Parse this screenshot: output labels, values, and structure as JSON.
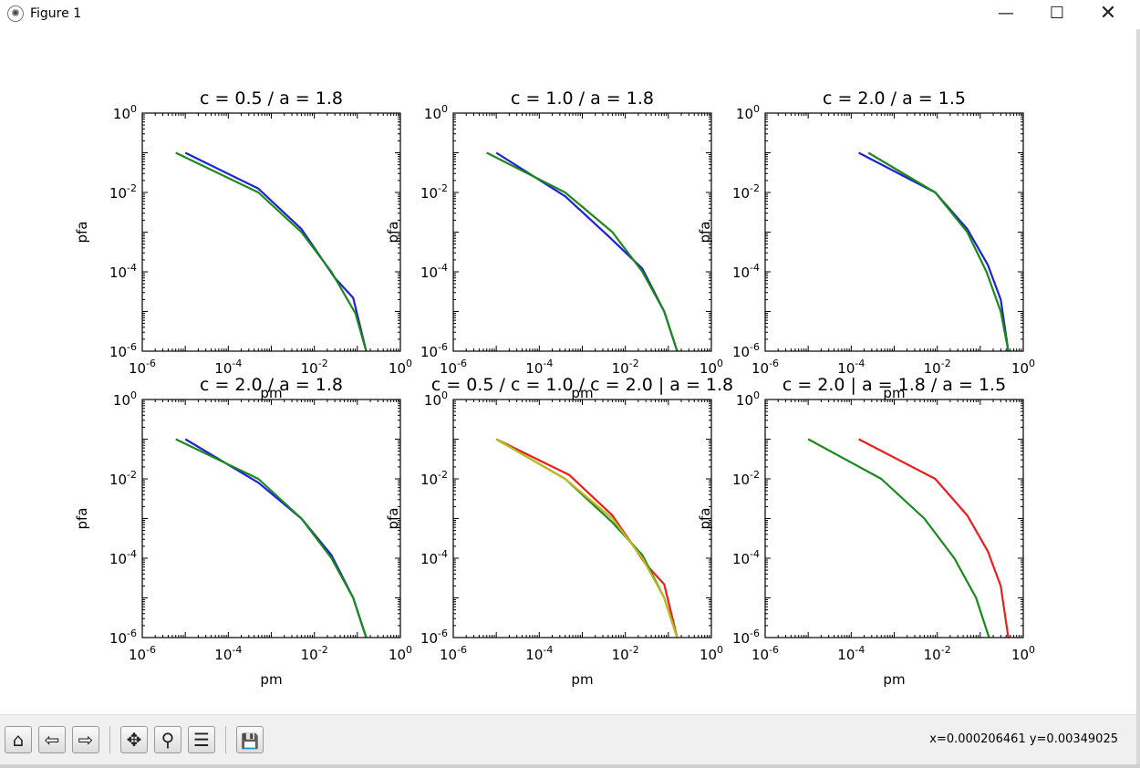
{
  "window": {
    "title": "Figure 1",
    "minimize_glyph": "—",
    "maximize_glyph": "☐",
    "close_glyph": "✕"
  },
  "toolbar": {
    "buttons": [
      {
        "name": "home-icon",
        "glyph": "⌂"
      },
      {
        "name": "back-arrow-icon",
        "glyph": "⇦"
      },
      {
        "name": "forward-arrow-icon",
        "glyph": "⇨"
      },
      {
        "name": "pan-icon",
        "glyph": "✥"
      },
      {
        "name": "zoom-icon",
        "glyph": "⚲"
      },
      {
        "name": "configure-subplots-icon",
        "glyph": "☰"
      },
      {
        "name": "save-icon",
        "glyph": "💾"
      }
    ],
    "coords": "x=0.000206461  y=0.00349025"
  },
  "colors": {
    "blue": "#1f1fdc",
    "green": "#1a8a1a",
    "red": "#ee1c1c",
    "olive": "#bcbc1e"
  },
  "chart_data": [
    {
      "type": "line",
      "title": "c = 0.5 / a = 1.8",
      "xlabel": "pm",
      "ylabel": "pfa",
      "xscale": "log",
      "yscale": "log",
      "xlim": [
        1e-06,
        1
      ],
      "ylim": [
        1e-06,
        1
      ],
      "xtick_exponents": [
        "-6",
        "-4",
        "-2",
        "0"
      ],
      "ytick_exponents": [
        "0",
        "-2",
        "-4",
        "-6"
      ],
      "series": [
        {
          "color": "#1f1fdc",
          "x": [
            1e-05,
            0.0005,
            0.005,
            0.03,
            0.08,
            0.16
          ],
          "y": [
            0.1,
            0.0125,
            0.0012,
            7e-05,
            2.2e-05,
            1e-06
          ]
        },
        {
          "color": "#1a8a1a",
          "x": [
            6e-06,
            0.0005,
            0.005,
            0.025,
            0.09,
            0.16
          ],
          "y": [
            0.1,
            0.01,
            0.001,
            0.0001,
            9e-06,
            1e-06
          ]
        }
      ]
    },
    {
      "type": "line",
      "title": "c = 1.0 / a = 1.8",
      "xlabel": "pm",
      "ylabel": "pfa",
      "xscale": "log",
      "yscale": "log",
      "xlim": [
        1e-06,
        1
      ],
      "ylim": [
        1e-06,
        1
      ],
      "xtick_exponents": [
        "-6",
        "-4",
        "-2",
        "0"
      ],
      "ytick_exponents": [
        "0",
        "-2",
        "-4",
        "-6"
      ],
      "series": [
        {
          "color": "#1f1fdc",
          "x": [
            1e-05,
            0.0004,
            0.004,
            0.025,
            0.08,
            0.16
          ],
          "y": [
            0.1,
            0.008,
            0.0008,
            0.00012,
            1e-05,
            1e-06
          ]
        },
        {
          "color": "#1a8a1a",
          "x": [
            6e-06,
            0.0004,
            0.005,
            0.025,
            0.08,
            0.16
          ],
          "y": [
            0.1,
            0.01,
            0.001,
            0.0001,
            1e-05,
            1e-06
          ]
        }
      ]
    },
    {
      "type": "line",
      "title": "c = 2.0 / a = 1.5",
      "xlabel": "pm",
      "ylabel": "pfa",
      "xscale": "log",
      "yscale": "log",
      "xlim": [
        1e-06,
        1
      ],
      "ylim": [
        1e-06,
        1
      ],
      "xtick_exponents": [
        "-6",
        "-4",
        "-2",
        "0"
      ],
      "ytick_exponents": [
        "0",
        "-2",
        "-4",
        "-6"
      ],
      "series": [
        {
          "color": "#1f1fdc",
          "x": [
            0.00015,
            0.009,
            0.05,
            0.15,
            0.3,
            0.45
          ],
          "y": [
            0.1,
            0.01,
            0.0012,
            0.00015,
            2e-05,
            1e-06
          ]
        },
        {
          "color": "#1a8a1a",
          "x": [
            0.00025,
            0.009,
            0.05,
            0.14,
            0.3,
            0.45
          ],
          "y": [
            0.1,
            0.01,
            0.001,
            0.0001,
            1e-05,
            1e-06
          ]
        }
      ]
    },
    {
      "type": "line",
      "title": "c = 2.0 / a = 1.8",
      "xlabel": "pm",
      "ylabel": "pfa",
      "xscale": "log",
      "yscale": "log",
      "xlim": [
        1e-06,
        1
      ],
      "ylim": [
        1e-06,
        1
      ],
      "xtick_exponents": [
        "-6",
        "-4",
        "-2",
        "0"
      ],
      "ytick_exponents": [
        "0",
        "-2",
        "-4",
        "-6"
      ],
      "series": [
        {
          "color": "#1f1fdc",
          "x": [
            1e-05,
            0.0005,
            0.005,
            0.025,
            0.08,
            0.16
          ],
          "y": [
            0.1,
            0.008,
            0.001,
            0.00012,
            1e-05,
            1e-06
          ]
        },
        {
          "color": "#1a8a1a",
          "x": [
            6e-06,
            0.0005,
            0.005,
            0.025,
            0.08,
            0.16
          ],
          "y": [
            0.1,
            0.01,
            0.001,
            0.0001,
            1e-05,
            1e-06
          ]
        }
      ]
    },
    {
      "type": "line",
      "title": "c = 0.5 / c = 1.0 / c = 2.0 | a = 1.8",
      "xlabel": "pm",
      "ylabel": "pfa",
      "xscale": "log",
      "yscale": "log",
      "xlim": [
        1e-06,
        1
      ],
      "ylim": [
        1e-06,
        1
      ],
      "xtick_exponents": [
        "-6",
        "-4",
        "-2",
        "0"
      ],
      "ytick_exponents": [
        "0",
        "-2",
        "-4",
        "-6"
      ],
      "series": [
        {
          "color": "#ee1c1c",
          "x": [
            1e-05,
            0.0005,
            0.005,
            0.03,
            0.08,
            0.16
          ],
          "y": [
            0.1,
            0.0125,
            0.0012,
            7e-05,
            2.2e-05,
            1e-06
          ]
        },
        {
          "color": "#1a8a1a",
          "x": [
            1e-05,
            0.0004,
            0.005,
            0.025,
            0.08,
            0.16
          ],
          "y": [
            0.1,
            0.01,
            0.0008,
            0.00012,
            1e-05,
            1e-06
          ]
        },
        {
          "color": "#bcbc1e",
          "x": [
            1e-05,
            0.0004,
            0.005,
            0.025,
            0.08,
            0.16
          ],
          "y": [
            0.1,
            0.01,
            0.001,
            0.0001,
            1e-05,
            1e-06
          ]
        }
      ]
    },
    {
      "type": "line",
      "title": "c = 2.0 | a = 1.8 / a = 1.5",
      "xlabel": "pm",
      "ylabel": "pfa",
      "xscale": "log",
      "yscale": "log",
      "xlim": [
        1e-06,
        1
      ],
      "ylim": [
        1e-06,
        1
      ],
      "xtick_exponents": [
        "-6",
        "-4",
        "-2",
        "0"
      ],
      "ytick_exponents": [
        "0",
        "-2",
        "-4",
        "-6"
      ],
      "series": [
        {
          "color": "#ee1c1c",
          "x": [
            0.00015,
            0.009,
            0.05,
            0.15,
            0.3,
            0.45
          ],
          "y": [
            0.1,
            0.01,
            0.0012,
            0.00015,
            2e-05,
            1e-06
          ]
        },
        {
          "color": "#1a8a1a",
          "x": [
            1e-05,
            0.0005,
            0.005,
            0.025,
            0.08,
            0.16
          ],
          "y": [
            0.1,
            0.01,
            0.001,
            0.0001,
            1e-05,
            1e-06
          ]
        }
      ]
    }
  ]
}
